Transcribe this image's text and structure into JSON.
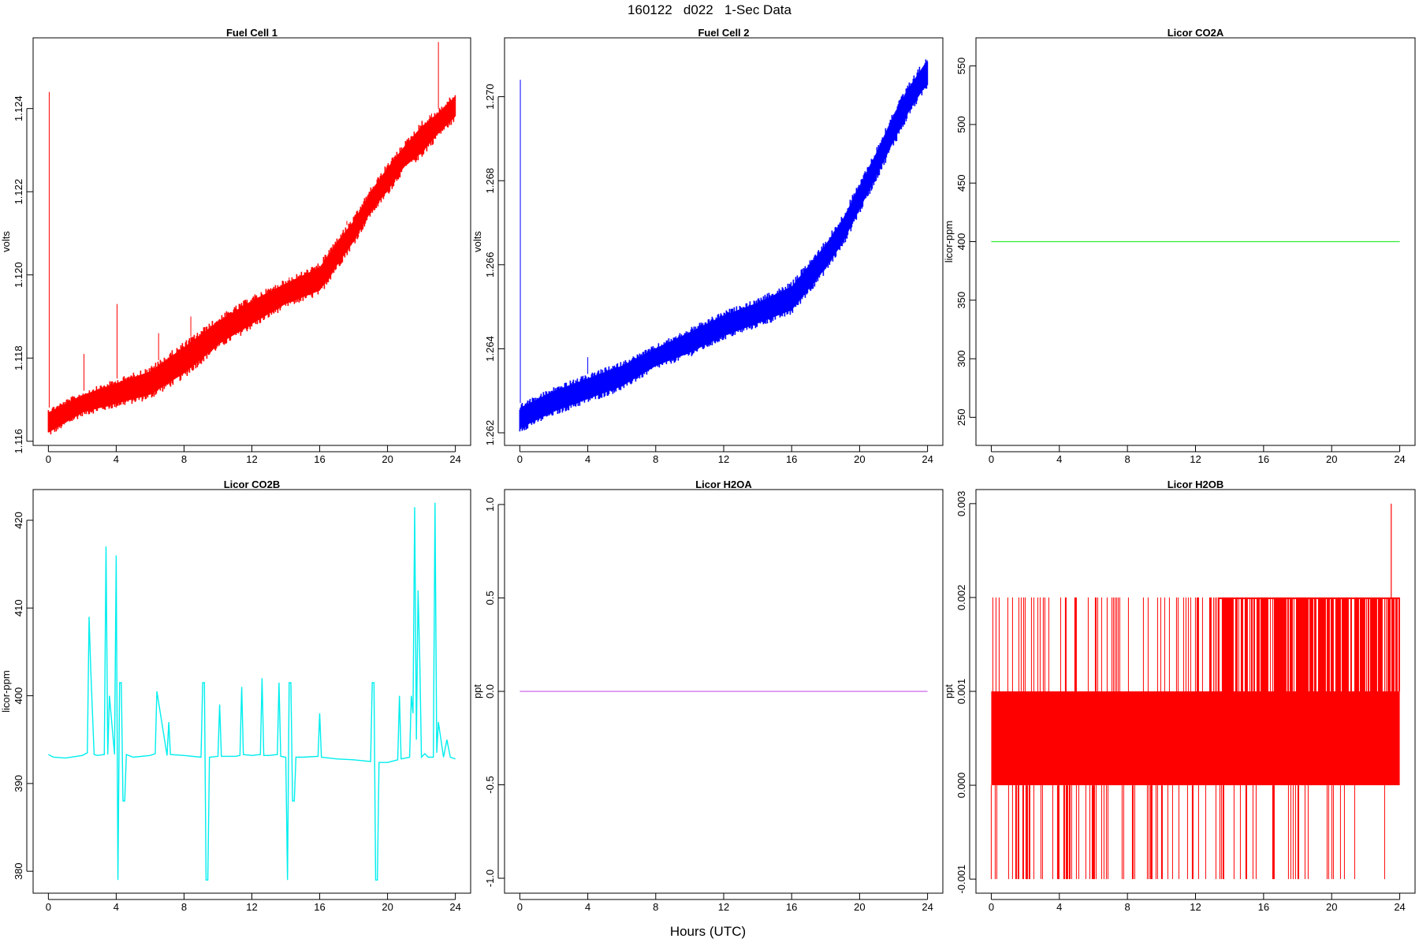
{
  "figure": {
    "title": "160122   d022   1-Sec Data",
    "common_xlabel": "Hours (UTC)"
  },
  "chart_data": [
    {
      "type": "line",
      "title": "Fuel Cell 1",
      "ylabel": "volts",
      "xlabel": "",
      "color": "#ff0000",
      "xlim": [
        -0.9,
        24.9
      ],
      "ylim": [
        1.1159,
        1.1257
      ],
      "xticks": [
        "0",
        "4",
        "8",
        "12",
        "16",
        "20",
        "24"
      ],
      "yticks": [
        "1.116",
        "1.118",
        "1.120",
        "1.122",
        "1.124"
      ],
      "band": {
        "x": [
          0,
          2,
          4,
          6,
          8,
          10,
          12,
          14,
          16,
          17,
          18,
          19,
          20,
          21,
          22,
          23,
          24
        ],
        "low": [
          1.1161,
          1.1166,
          1.1168,
          1.117,
          1.1175,
          1.1182,
          1.1187,
          1.1192,
          1.1195,
          1.1201,
          1.1207,
          1.1214,
          1.1219,
          1.1225,
          1.1228,
          1.1233,
          1.1237
        ],
        "high": [
          1.1168,
          1.1172,
          1.1175,
          1.1178,
          1.1184,
          1.119,
          1.1195,
          1.1199,
          1.1203,
          1.1209,
          1.1214,
          1.1221,
          1.1227,
          1.1232,
          1.1237,
          1.124,
          1.1244
        ]
      },
      "spikes": [
        {
          "x": 0.05,
          "y": 1.1244
        },
        {
          "x": 2.1,
          "y": 1.1181
        },
        {
          "x": 4.05,
          "y": 1.1193
        },
        {
          "x": 6.5,
          "y": 1.1186
        },
        {
          "x": 8.4,
          "y": 1.119
        },
        {
          "x": 11.5,
          "y": 1.1191
        },
        {
          "x": 14.2,
          "y": 1.1196
        },
        {
          "x": 17.6,
          "y": 1.1213
        },
        {
          "x": 22.6,
          "y": 1.1234
        },
        {
          "x": 23.0,
          "y": 1.1256
        }
      ]
    },
    {
      "type": "line",
      "title": "Fuel Cell 2",
      "ylabel": "volts",
      "xlabel": "",
      "color": "#0000ff",
      "xlim": [
        -0.9,
        24.9
      ],
      "ylim": [
        1.2617,
        1.2714
      ],
      "xticks": [
        "0",
        "4",
        "8",
        "12",
        "16",
        "20",
        "24"
      ],
      "yticks": [
        "1.262",
        "1.264",
        "1.266",
        "1.268",
        "1.270"
      ],
      "band": {
        "x": [
          0,
          2,
          4,
          6,
          8,
          10,
          12,
          14,
          16,
          17,
          18,
          19,
          20,
          21,
          22,
          23,
          24
        ],
        "low": [
          1.262,
          1.2624,
          1.2627,
          1.263,
          1.2635,
          1.2638,
          1.2642,
          1.2645,
          1.2648,
          1.2653,
          1.2658,
          1.2664,
          1.2672,
          1.268,
          1.2688,
          1.2696,
          1.2702
        ],
        "high": [
          1.2627,
          1.2631,
          1.2634,
          1.2637,
          1.2641,
          1.2645,
          1.2649,
          1.2652,
          1.2656,
          1.2661,
          1.2666,
          1.2672,
          1.268,
          1.2688,
          1.2697,
          1.2704,
          1.271
        ]
      },
      "spikes": [
        {
          "x": 0.03,
          "y": 1.2704
        },
        {
          "x": 4.0,
          "y": 1.2638
        }
      ]
    },
    {
      "type": "line",
      "title": "Licor CO2A",
      "ylabel": "licor-ppm",
      "xlabel": "",
      "color": "#33ee33",
      "xlim": [
        -0.9,
        24.9
      ],
      "ylim": [
        226,
        574
      ],
      "xticks": [
        "0",
        "4",
        "8",
        "12",
        "16",
        "20",
        "24"
      ],
      "yticks": [
        "250",
        "300",
        "350",
        "400",
        "450",
        "500",
        "550"
      ],
      "series": [
        {
          "x": [
            0,
            24
          ],
          "y": [
            400,
            400
          ]
        }
      ]
    },
    {
      "type": "line",
      "title": "Licor CO2B",
      "ylabel": "licor-ppm",
      "xlabel": "",
      "color": "#00eeee",
      "xlim": [
        -0.9,
        24.9
      ],
      "ylim": [
        377.5,
        423.5
      ],
      "xticks": [
        "0",
        "4",
        "8",
        "12",
        "16",
        "20",
        "24"
      ],
      "yticks": [
        "380",
        "390",
        "400",
        "410",
        "420"
      ],
      "series": [
        {
          "x": [
            0,
            0.3,
            1.0,
            2.0,
            2.3,
            2.4,
            2.5,
            2.7,
            2.9,
            3.3,
            3.4,
            3.5,
            3.6,
            3.9,
            4.0,
            4.1,
            4.2,
            4.3,
            4.4,
            4.5,
            4.6,
            5.0,
            6.0,
            6.3,
            6.4,
            7.0,
            7.1,
            7.2,
            8.0,
            9.0,
            9.1,
            9.2,
            9.3,
            9.4,
            9.5,
            10.0,
            10.1,
            10.2,
            11.0,
            11.3,
            11.4,
            11.5,
            12.0,
            12.5,
            12.6,
            12.7,
            13.0,
            13.5,
            13.6,
            13.7,
            14.0,
            14.1,
            14.2,
            14.3,
            14.4,
            14.5,
            14.6,
            15.0,
            15.9,
            16.0,
            16.1,
            17.0,
            18.0,
            19.0,
            19.1,
            19.2,
            19.3,
            19.4,
            19.5,
            20.0,
            20.6,
            20.7,
            20.8,
            21.3,
            21.4,
            21.5,
            21.6,
            21.7,
            21.8,
            21.9,
            22.0,
            22.2,
            22.4,
            22.7,
            22.8,
            22.9,
            23.0,
            23.3,
            23.5,
            23.7,
            24.0
          ],
          "y": [
            393.3,
            393.0,
            392.9,
            393.2,
            393.5,
            409.0,
            403.0,
            393.3,
            393.2,
            393.3,
            417.0,
            393.3,
            400.0,
            393.3,
            416.0,
            379.0,
            401.5,
            401.5,
            388.0,
            388.0,
            393.3,
            393.0,
            393.2,
            393.4,
            400.5,
            393.2,
            397.0,
            393.3,
            393.2,
            393.0,
            401.5,
            401.5,
            379.0,
            379.0,
            393.0,
            393.1,
            399.0,
            393.1,
            393.1,
            393.2,
            401.0,
            393.3,
            393.2,
            393.3,
            402.0,
            393.2,
            393.2,
            393.3,
            401.5,
            393.1,
            393.0,
            379.0,
            401.5,
            401.5,
            388.0,
            388.0,
            393.0,
            393.0,
            393.1,
            398.0,
            393.0,
            392.8,
            392.7,
            392.5,
            401.5,
            401.5,
            379.0,
            379.0,
            392.4,
            392.4,
            392.7,
            400.0,
            392.8,
            393.0,
            400.0,
            398.0,
            421.5,
            395.0,
            412.0,
            404.0,
            393.0,
            393.4,
            393.0,
            393.0,
            422.0,
            393.5,
            397.0,
            393.0,
            395.0,
            393.0,
            392.8
          ]
        }
      ]
    },
    {
      "type": "line",
      "title": "Licor H2OA",
      "ylabel": "ppt",
      "xlabel": "",
      "color": "#cc66ee",
      "xlim": [
        -0.9,
        24.9
      ],
      "ylim": [
        -1.08,
        1.08
      ],
      "xticks": [
        "0",
        "4",
        "8",
        "12",
        "16",
        "20",
        "24"
      ],
      "yticks": [
        "-1.0",
        "-0.5",
        "0.0",
        "0.5",
        "1.0"
      ],
      "series": [
        {
          "x": [
            0,
            24
          ],
          "y": [
            0,
            0
          ]
        }
      ]
    },
    {
      "type": "line",
      "title": "Licor H2OB",
      "ylabel": "ppt",
      "xlabel": "",
      "color": "#ff0000",
      "xlim": [
        -0.9,
        24.9
      ],
      "ylim": [
        -0.00115,
        0.00315
      ],
      "xticks": [
        "0",
        "4",
        "8",
        "12",
        "16",
        "20",
        "24"
      ],
      "yticks": [
        "-0.001",
        "0.000",
        "0.001",
        "0.002",
        "0.003"
      ],
      "main_band": {
        "x": [
          0,
          24
        ],
        "low": 0.0,
        "high": 0.001
      },
      "dense_upper": {
        "x": [
          13.0,
          24.0
        ],
        "low": 0.001,
        "high": 0.002
      },
      "spike": {
        "x": 23.5,
        "y": 0.003
      }
    }
  ]
}
